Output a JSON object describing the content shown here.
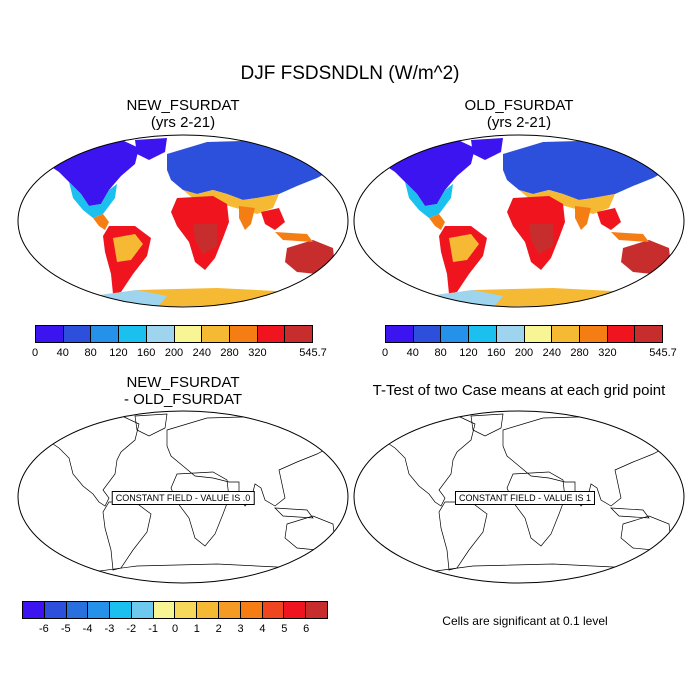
{
  "title": "DJF FSDSNDLN (W/m^2)",
  "panels": {
    "new": {
      "title_line1": "NEW_FSURDAT",
      "title_line2": "(yrs 2-21)"
    },
    "old": {
      "title_line1": "OLD_FSURDAT",
      "title_line2": "(yrs 2-21)"
    },
    "diff": {
      "title_line1": "NEW_FSURDAT",
      "title_line2": "- OLD_FSURDAT",
      "constant_label": "CONSTANT FIELD - VALUE IS .0"
    },
    "ttest": {
      "title": "T-Test of two Case means at each grid point",
      "constant_label": "CONSTANT FIELD - VALUE IS 1"
    }
  },
  "colorbars": {
    "field": {
      "colors": [
        "#3c14f0",
        "#2d50dc",
        "#2591e8",
        "#1cc0ef",
        "#9ed4ee",
        "#f8f594",
        "#f6b934",
        "#f57e14",
        "#f0141e",
        "#c82d2d"
      ],
      "ticks": [
        "0",
        "40",
        "80",
        "120",
        "160",
        "200",
        "240",
        "280",
        "320",
        "545.7"
      ]
    },
    "diff": {
      "colors": [
        "#3c14f0",
        "#2d50dc",
        "#2a6fde",
        "#2591e8",
        "#1cc0ef",
        "#6ec9ee",
        "#f8f594",
        "#f6d85a",
        "#f6b934",
        "#f59a24",
        "#f57e14",
        "#f04620",
        "#f0141e",
        "#c82d2d"
      ],
      "ticks": [
        "-6",
        "-5",
        "-4",
        "-3",
        "-2",
        "-1",
        "0",
        "1",
        "2",
        "3",
        "4",
        "5",
        "6"
      ]
    }
  },
  "significance_note": "Cells are significant at 0.1 level"
}
